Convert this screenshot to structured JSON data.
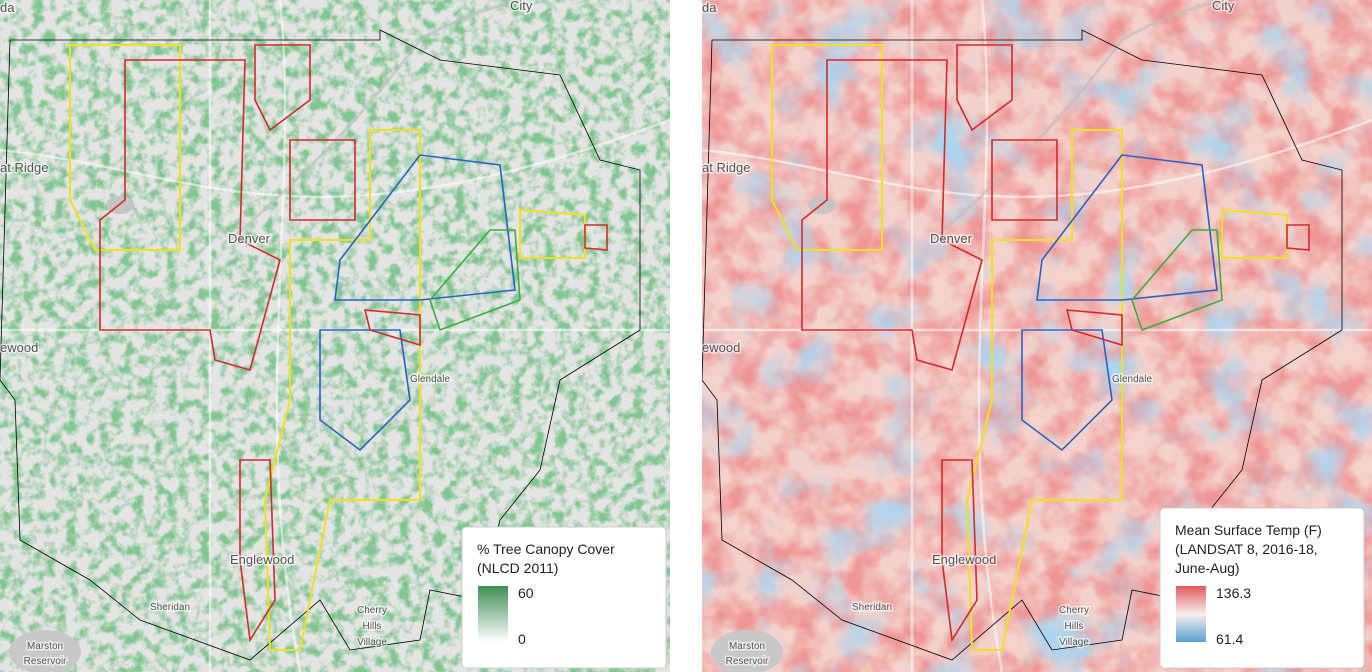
{
  "maps": [
    {
      "place_labels": [
        "da",
        "City",
        "at Ridge",
        "Denver",
        "ewood",
        "Glendale",
        "Englewood",
        "Sheridan",
        "Cherry",
        "Hills",
        "Village",
        "Marston",
        "Reservoir"
      ],
      "legend": {
        "title": [
          "% Tree Canopy Cover",
          "(NLCD 2011)"
        ],
        "max": 60,
        "min": 0
      }
    },
    {
      "place_labels": [
        "da",
        "City",
        "at Ridge",
        "Denver",
        "ewood",
        "Glendale",
        "Englewood",
        "Sheridan",
        "Cherry",
        "Hills",
        "Village",
        "Marston",
        "Reservoir"
      ],
      "legend": {
        "title": [
          "Mean Surface Temp (F)",
          "(LANDSAT 8, 2016-18,",
          "June-Aug)"
        ],
        "max": 136.3,
        "min": 61.4
      }
    }
  ]
}
